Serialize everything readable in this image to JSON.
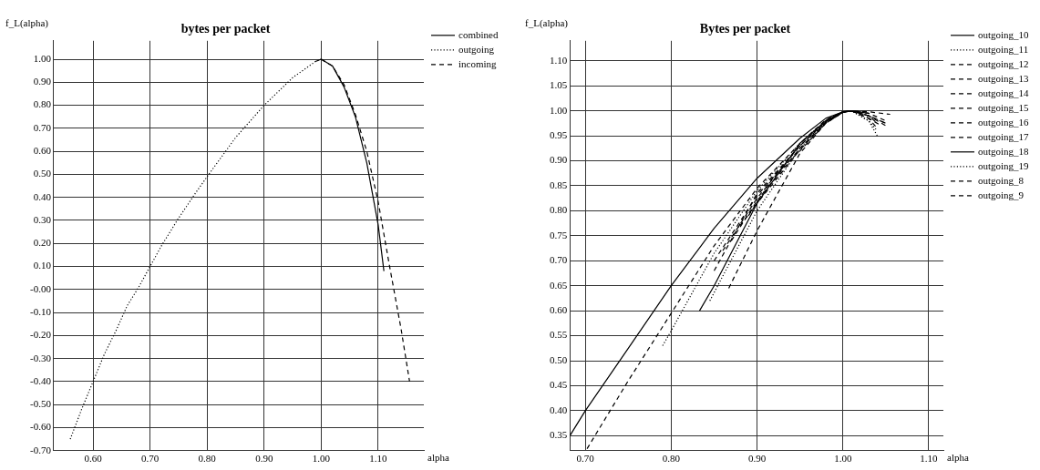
{
  "chart_data": [
    {
      "type": "line",
      "title": "bytes per packet",
      "xlabel": "alpha",
      "ylabel": "f_L(alpha)",
      "legend": "top right",
      "grid": true,
      "marker": "none",
      "xlim": [
        0.531,
        1.18
      ],
      "ylim": [
        -0.7,
        1.08
      ],
      "xticks": [
        {
          "value": 0.6,
          "label": "0.60"
        },
        {
          "value": 0.7,
          "label": "0.70"
        },
        {
          "value": 0.8,
          "label": "0.80"
        },
        {
          "value": 0.9,
          "label": "0.90"
        },
        {
          "value": 1.0,
          "label": "1.00"
        },
        {
          "value": 1.1,
          "label": "1.10"
        }
      ],
      "yticks": [
        {
          "value": -0.7,
          "label": "-0.70"
        },
        {
          "value": -0.6,
          "label": "-0.60"
        },
        {
          "value": -0.5,
          "label": "-0.50"
        },
        {
          "value": -0.4,
          "label": "-0.40"
        },
        {
          "value": -0.3,
          "label": "-0.30"
        },
        {
          "value": -0.2,
          "label": "-0.20"
        },
        {
          "value": -0.1,
          "label": "-0.10"
        },
        {
          "value": 0,
          "label": "-0.00"
        },
        {
          "value": 0.1,
          "label": "0.10"
        },
        {
          "value": 0.2,
          "label": "0.20"
        },
        {
          "value": 0.3,
          "label": "0.30"
        },
        {
          "value": 0.4,
          "label": "0.40"
        },
        {
          "value": 0.5,
          "label": "0.50"
        },
        {
          "value": 0.6,
          "label": "0.60"
        },
        {
          "value": 0.7,
          "label": "0.70"
        },
        {
          "value": 0.8,
          "label": "0.80"
        },
        {
          "value": 0.9,
          "label": "0.90"
        },
        {
          "value": 1.0,
          "label": "1.00"
        }
      ],
      "series": [
        {
          "name": "combined",
          "color": "#000000",
          "line_style": "solid",
          "x": [
            0.99,
            1.0,
            1.02,
            1.04,
            1.06,
            1.08,
            1.1,
            1.11
          ],
          "values": [
            0.99,
            1.0,
            0.97,
            0.88,
            0.75,
            0.55,
            0.28,
            0.08
          ]
        },
        {
          "name": "outgoing",
          "color": "#000000",
          "line_style": "dotted",
          "x": [
            0.56,
            0.58,
            0.6,
            0.62,
            0.64,
            0.66,
            0.68,
            0.7,
            0.72,
            0.75,
            0.78,
            0.8,
            0.85,
            0.9,
            0.95,
            0.99,
            1.0
          ],
          "values": [
            -0.65,
            -0.52,
            -0.4,
            -0.28,
            -0.18,
            -0.07,
            0.01,
            0.1,
            0.19,
            0.31,
            0.42,
            0.49,
            0.66,
            0.8,
            0.92,
            0.99,
            1.0
          ]
        },
        {
          "name": "incoming",
          "color": "#000000",
          "line_style": "dashed",
          "x": [
            1.0,
            1.02,
            1.04,
            1.06,
            1.08,
            1.1,
            1.12,
            1.14,
            1.155
          ],
          "values": [
            1.0,
            0.97,
            0.89,
            0.76,
            0.6,
            0.38,
            0.1,
            -0.17,
            -0.4
          ]
        }
      ]
    },
    {
      "type": "line",
      "title": "Bytes per packet",
      "xlabel": "alpha",
      "ylabel": "f_L(alpha)",
      "legend": "top right",
      "grid": true,
      "marker": "none",
      "xlim": [
        0.682,
        1.117
      ],
      "ylim": [
        0.32,
        1.14
      ],
      "xticks": [
        {
          "value": 0.7,
          "label": "0.70"
        },
        {
          "value": 0.8,
          "label": "0.80"
        },
        {
          "value": 0.9,
          "label": "0.90"
        },
        {
          "value": 1.0,
          "label": "1.00"
        },
        {
          "value": 1.1,
          "label": "1.10"
        }
      ],
      "yticks": [
        {
          "value": 0.35,
          "label": "0.35"
        },
        {
          "value": 0.4,
          "label": "0.40"
        },
        {
          "value": 0.45,
          "label": "0.45"
        },
        {
          "value": 0.5,
          "label": "0.50"
        },
        {
          "value": 0.55,
          "label": "0.55"
        },
        {
          "value": 0.6,
          "label": "0.60"
        },
        {
          "value": 0.65,
          "label": "0.65"
        },
        {
          "value": 0.7,
          "label": "0.70"
        },
        {
          "value": 0.75,
          "label": "0.75"
        },
        {
          "value": 0.8,
          "label": "0.80"
        },
        {
          "value": 0.85,
          "label": "0.85"
        },
        {
          "value": 0.9,
          "label": "0.90"
        },
        {
          "value": 0.95,
          "label": "0.95"
        },
        {
          "value": 1.0,
          "label": "1.00"
        },
        {
          "value": 1.05,
          "label": "1.05"
        },
        {
          "value": 1.1,
          "label": "1.10"
        }
      ],
      "series": [
        {
          "name": "outgoing_10",
          "color": "#000000",
          "line_style": "solid",
          "x": [
            0.682,
            0.7,
            0.75,
            0.8,
            0.85,
            0.9,
            0.95,
            0.98,
            1.0,
            1.01,
            1.03
          ],
          "values": [
            0.35,
            0.4,
            0.525,
            0.65,
            0.765,
            0.865,
            0.945,
            0.985,
            0.998,
            1.0,
            0.995
          ]
        },
        {
          "name": "outgoing_11",
          "color": "#000000",
          "line_style": "dotted",
          "x": [
            0.79,
            0.8,
            0.85,
            0.9,
            0.95,
            0.98,
            1.0,
            1.01,
            1.03,
            1.04
          ],
          "values": [
            0.53,
            0.56,
            0.715,
            0.84,
            0.935,
            0.98,
            0.998,
            1.0,
            0.98,
            0.95
          ]
        },
        {
          "name": "outgoing_12",
          "color": "#000000",
          "line_style": "dashed",
          "x": [
            0.702,
            0.75,
            0.8,
            0.85,
            0.9,
            0.95,
            0.98,
            1.0,
            1.01,
            1.03,
            1.05
          ],
          "values": [
            0.324,
            0.46,
            0.595,
            0.73,
            0.845,
            0.935,
            0.982,
            0.998,
            1.0,
            0.99,
            0.975
          ]
        },
        {
          "name": "outgoing_13",
          "color": "#000000",
          "line_style": "dashed",
          "x": [
            0.85,
            0.9,
            0.95,
            0.98,
            1.0,
            1.01,
            1.03,
            1.05
          ],
          "values": [
            0.7,
            0.83,
            0.93,
            0.98,
            0.998,
            1.0,
            0.995,
            0.98
          ]
        },
        {
          "name": "outgoing_14",
          "color": "#000000",
          "line_style": "dashed",
          "x": [
            0.86,
            0.9,
            0.95,
            0.98,
            1.0,
            1.01,
            1.03,
            1.055
          ],
          "values": [
            0.72,
            0.825,
            0.93,
            0.978,
            0.998,
            1.0,
            0.998,
            0.993
          ]
        },
        {
          "name": "outgoing_15",
          "color": "#000000",
          "line_style": "dashed",
          "x": [
            0.87,
            0.9,
            0.95,
            0.98,
            1.0,
            1.01,
            1.03,
            1.05
          ],
          "values": [
            0.74,
            0.82,
            0.925,
            0.977,
            0.997,
            1.0,
            0.99,
            0.97
          ]
        },
        {
          "name": "outgoing_16",
          "color": "#000000",
          "line_style": "dashed",
          "x": [
            0.88,
            0.9,
            0.95,
            0.98,
            1.0,
            1.01,
            1.03,
            1.045
          ],
          "values": [
            0.77,
            0.815,
            0.922,
            0.976,
            0.997,
            1.0,
            0.985,
            0.97
          ]
        },
        {
          "name": "outgoing_17",
          "color": "#000000",
          "line_style": "dashed",
          "x": [
            0.89,
            0.92,
            0.95,
            0.98,
            1.0,
            1.01,
            1.03,
            1.04
          ],
          "values": [
            0.79,
            0.87,
            0.92,
            0.975,
            0.997,
            1.0,
            0.99,
            0.975
          ]
        },
        {
          "name": "outgoing_18",
          "color": "#000000",
          "line_style": "solid",
          "x": [
            0.833,
            0.85,
            0.9,
            0.95,
            0.98,
            1.0,
            1.01,
            1.02
          ],
          "values": [
            0.6,
            0.65,
            0.815,
            0.935,
            0.98,
            0.998,
            1.0,
            0.997
          ]
        },
        {
          "name": "outgoing_19",
          "color": "#000000",
          "line_style": "dotted",
          "x": [
            0.845,
            0.9,
            0.95,
            0.98,
            1.0,
            1.01,
            1.03,
            1.04
          ],
          "values": [
            0.62,
            0.8,
            0.925,
            0.977,
            0.997,
            1.0,
            0.98,
            0.96
          ]
        },
        {
          "name": "outgoing_8",
          "color": "#000000",
          "line_style": "dashed",
          "x": [
            0.85,
            0.9,
            0.95,
            0.98,
            1.0,
            1.01,
            1.03,
            1.05
          ],
          "values": [
            0.68,
            0.835,
            0.93,
            0.98,
            0.998,
            1.0,
            0.99,
            0.975
          ]
        },
        {
          "name": "outgoing_9",
          "color": "#000000",
          "line_style": "dashed",
          "x": [
            0.867,
            0.9,
            0.95,
            0.98,
            1.0,
            1.01,
            1.03,
            1.04
          ],
          "values": [
            0.645,
            0.76,
            0.915,
            0.975,
            0.997,
            1.0,
            0.985,
            0.965
          ]
        }
      ]
    }
  ]
}
